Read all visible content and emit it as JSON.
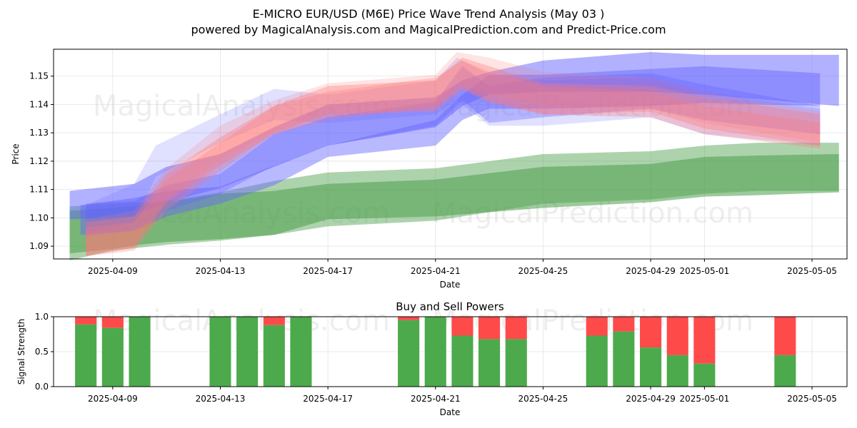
{
  "header": {
    "title": "E-MICRO EUR/USD (M6E) Price Wave Trend Analysis (May 03 )",
    "subtitle": "powered by MagicalAnalysis.com and MagicalPrediction.com and Predict-Price.com"
  },
  "watermarks": [
    "MagicalAnalysis.com",
    "MagicalPrediction.com"
  ],
  "colors": {
    "buy": "#4caa4c",
    "sell": "#ff4a4a",
    "blue": "#6464ff",
    "red": "#ff7878",
    "green": "#4a9e4a"
  },
  "chart_data": [
    {
      "type": "area",
      "title": "",
      "xlabel": "Date",
      "ylabel": "Price",
      "ylim": [
        1.0855,
        1.1595
      ],
      "yticks": [
        1.09,
        1.1,
        1.11,
        1.12,
        1.13,
        1.14,
        1.15
      ],
      "ytick_labels": [
        "1.09",
        "1.10",
        "1.11",
        "1.12",
        "1.13",
        "1.14",
        "1.15"
      ],
      "xlim_days": [
        -2.2,
        27.3
      ],
      "xtick_days": [
        0,
        4,
        8,
        12,
        16,
        20,
        22,
        26
      ],
      "xtick_labels": [
        "2025-04-09",
        "2025-04-13",
        "2025-04-17",
        "2025-04-21",
        "2025-04-25",
        "2025-04-29",
        "2025-05-01",
        "2025-05-05"
      ],
      "grid": true,
      "bands": [
        {
          "name": "green-outer",
          "color": "green",
          "opacity": 0.45,
          "x": [
            -1.6,
            0,
            1,
            2,
            4,
            6,
            8,
            12,
            16,
            20,
            22,
            24,
            27
          ],
          "upper": [
            1.104,
            1.105,
            1.1055,
            1.106,
            1.109,
            1.113,
            1.116,
            1.1175,
            1.1225,
            1.1235,
            1.1255,
            1.1265,
            1.1265
          ],
          "lower": [
            1.085,
            1.0885,
            1.0895,
            1.0905,
            1.092,
            1.094,
            1.097,
            1.099,
            1.105,
            1.1065,
            1.1085,
            1.1095,
            1.1095
          ]
        },
        {
          "name": "green-inner",
          "color": "green",
          "opacity": 0.55,
          "x": [
            -1.6,
            0,
            1,
            2,
            4,
            6,
            8,
            12,
            16,
            20,
            22,
            24,
            27
          ],
          "upper": [
            1.1025,
            1.1035,
            1.1045,
            1.1055,
            1.1085,
            1.1095,
            1.112,
            1.1135,
            1.118,
            1.119,
            1.1215,
            1.122,
            1.1225
          ],
          "lower": [
            1.0875,
            1.089,
            1.0905,
            1.0915,
            1.0925,
            1.094,
            1.0995,
            1.1005,
            1.1035,
            1.1055,
            1.1075,
            1.108,
            1.109
          ]
        },
        {
          "name": "blue-1",
          "color": "blue",
          "opacity": 0.5,
          "x": [
            -1.6,
            0.8,
            2,
            4,
            6,
            8,
            12,
            13,
            14,
            16,
            20,
            22,
            27
          ],
          "upper": [
            1.1095,
            1.112,
            1.118,
            1.1225,
            1.132,
            1.14,
            1.1425,
            1.1485,
            1.1515,
            1.1555,
            1.1585,
            1.1575,
            1.1575
          ],
          "lower": [
            1.0995,
            1.1005,
            1.1055,
            1.1105,
            1.118,
            1.1255,
            1.132,
            1.1395,
            1.1435,
            1.1445,
            1.1445,
            1.1435,
            1.1395
          ]
        },
        {
          "name": "blue-2",
          "color": "blue",
          "opacity": 0.45,
          "x": [
            -1.2,
            0.8,
            2,
            4,
            6,
            8,
            12,
            13,
            14,
            16,
            20,
            22,
            26.3
          ],
          "upper": [
            1.1045,
            1.107,
            1.1095,
            1.111,
            1.1185,
            1.1255,
            1.1345,
            1.1435,
            1.1505,
            1.1505,
            1.1525,
            1.1535,
            1.151
          ],
          "lower": [
            1.094,
            1.0955,
            1.1005,
            1.105,
            1.1115,
            1.1215,
            1.1255,
            1.1345,
            1.1385,
            1.1385,
            1.1395,
            1.1405,
            1.1395
          ]
        },
        {
          "name": "blue-3",
          "color": "blue",
          "opacity": 0.35,
          "x": [
            -1.0,
            0.8,
            2,
            4,
            6,
            8,
            12,
            13,
            14,
            16,
            20,
            22,
            26.3
          ],
          "upper": [
            1.105,
            1.106,
            1.1115,
            1.1155,
            1.1295,
            1.1355,
            1.141,
            1.1535,
            1.1465,
            1.1495,
            1.151,
            1.147,
            1.1395
          ],
          "lower": [
            1.0935,
            1.0955,
            1.1025,
            1.1085,
            1.1185,
            1.1255,
            1.1325,
            1.1415,
            1.1335,
            1.1355,
            1.1385,
            1.1345,
            1.1295
          ]
        },
        {
          "name": "blue-4",
          "color": "blue",
          "opacity": 0.2,
          "x": [
            -1.0,
            0.8,
            1.6,
            4,
            6,
            8,
            12,
            12.8,
            14,
            16,
            20,
            22,
            26.3
          ],
          "upper": [
            1.1045,
            1.112,
            1.1255,
            1.1365,
            1.1455,
            1.1435,
            1.1485,
            1.1565,
            1.1505,
            1.1485,
            1.1495,
            1.1445,
            1.1385
          ],
          "lower": [
            1.0945,
            1.0985,
            1.1145,
            1.1265,
            1.1345,
            1.1335,
            1.1365,
            1.1415,
            1.1325,
            1.1325,
            1.1355,
            1.1295,
            1.1255
          ]
        },
        {
          "name": "red-1",
          "color": "red",
          "opacity": 0.35,
          "x": [
            -1.0,
            0.8,
            2,
            4,
            6,
            8,
            12,
            13,
            14,
            16,
            20,
            22,
            26.3
          ],
          "upper": [
            1.0985,
            1.1005,
            1.1155,
            1.1285,
            1.1395,
            1.1465,
            1.1485,
            1.1565,
            1.1535,
            1.1475,
            1.1465,
            1.1425,
            1.1365
          ],
          "lower": [
            1.0865,
            1.0895,
            1.1055,
            1.1185,
            1.1295,
            1.1365,
            1.1375,
            1.1455,
            1.1415,
            1.1365,
            1.1375,
            1.1315,
            1.1255
          ]
        },
        {
          "name": "red-2",
          "color": "red",
          "opacity": 0.3,
          "x": [
            -1.0,
            0.8,
            2,
            4,
            6,
            8,
            12,
            13,
            14,
            16,
            20,
            22,
            26.3
          ],
          "upper": [
            1.0965,
            1.0985,
            1.1135,
            1.1265,
            1.1395,
            1.1445,
            1.1495,
            1.1555,
            1.1515,
            1.1465,
            1.1445,
            1.1395,
            1.1335
          ],
          "lower": [
            1.0865,
            1.0885,
            1.1025,
            1.1165,
            1.1295,
            1.1345,
            1.1395,
            1.1455,
            1.1405,
            1.1365,
            1.1355,
            1.1295,
            1.1245
          ]
        },
        {
          "name": "red-3",
          "color": "red",
          "opacity": 0.2,
          "x": [
            -1.0,
            0.8,
            2,
            4,
            6,
            8,
            12,
            12.8,
            14,
            16,
            20,
            22,
            26.3
          ],
          "upper": [
            1.0995,
            1.1025,
            1.1175,
            1.1325,
            1.1415,
            1.1475,
            1.1505,
            1.1585,
            1.1565,
            1.1515,
            1.1495,
            1.1445,
            1.1375
          ],
          "lower": [
            1.0875,
            1.0905,
            1.1065,
            1.1205,
            1.1305,
            1.1365,
            1.1385,
            1.1475,
            1.1435,
            1.1395,
            1.1385,
            1.1335,
            1.1265
          ]
        }
      ]
    },
    {
      "type": "bar",
      "title": "Buy and Sell Powers",
      "xlabel": "Date",
      "ylabel": "Signal Strength",
      "ylim": [
        0,
        1.0
      ],
      "yticks": [
        0.0,
        0.5,
        1.0
      ],
      "ytick_labels": [
        "0.0",
        "0.5",
        "1.0"
      ],
      "xlim_days": [
        -2.2,
        27.3
      ],
      "xtick_days": [
        0,
        4,
        8,
        12,
        16,
        20,
        22,
        26
      ],
      "xtick_labels": [
        "2025-04-09",
        "2025-04-13",
        "2025-04-17",
        "2025-04-21",
        "2025-04-25",
        "2025-04-29",
        "2025-05-01",
        "2025-05-05"
      ],
      "grid": true,
      "series": [
        {
          "name": "Buy",
          "color": "buy"
        },
        {
          "name": "Sell",
          "color": "sell"
        }
      ],
      "bars": [
        {
          "date": "2025-04-08",
          "day": -1,
          "buy": 0.89
        },
        {
          "date": "2025-04-09",
          "day": 0,
          "buy": 0.84
        },
        {
          "date": "2025-04-10",
          "day": 1,
          "buy": 1.0
        },
        {
          "date": "2025-04-13",
          "day": 4,
          "buy": 1.0
        },
        {
          "date": "2025-04-14",
          "day": 5,
          "buy": 1.0
        },
        {
          "date": "2025-04-15",
          "day": 6,
          "buy": 0.88
        },
        {
          "date": "2025-04-16",
          "day": 7,
          "buy": 1.0
        },
        {
          "date": "2025-04-20",
          "day": 11,
          "buy": 0.95
        },
        {
          "date": "2025-04-21",
          "day": 12,
          "buy": 1.0
        },
        {
          "date": "2025-04-22",
          "day": 13,
          "buy": 0.73
        },
        {
          "date": "2025-04-23",
          "day": 14,
          "buy": 0.68
        },
        {
          "date": "2025-04-24",
          "day": 15,
          "buy": 0.68
        },
        {
          "date": "2025-04-27",
          "day": 18,
          "buy": 0.73
        },
        {
          "date": "2025-04-28",
          "day": 19,
          "buy": 0.79
        },
        {
          "date": "2025-04-29",
          "day": 20,
          "buy": 0.56
        },
        {
          "date": "2025-04-30",
          "day": 21,
          "buy": 0.45
        },
        {
          "date": "2025-05-01",
          "day": 22,
          "buy": 0.33
        },
        {
          "date": "2025-05-04",
          "day": 25,
          "buy": 0.45
        }
      ]
    }
  ]
}
